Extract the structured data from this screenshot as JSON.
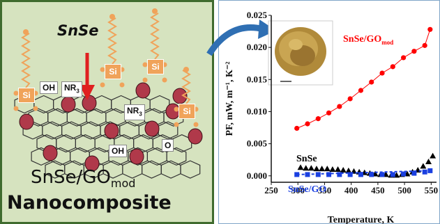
{
  "left_panel": {
    "arrow_label": "SnSe",
    "caption_main": "SnSe/GO",
    "caption_sub": "mod",
    "caption_line2": "Nanocomposite",
    "tags": {
      "oh1": "OH",
      "nr3a": "NR",
      "nr3a_sub": "3",
      "nr3b": "NR",
      "nr3b_sub": "3",
      "oh2": "OH",
      "o": "O"
    },
    "si_label": "Si",
    "colors": {
      "panel": "#d6e3bf",
      "border": "#3f6b2e",
      "particle": "#b0394a",
      "arrow": "#e02020",
      "linker": "#f0a35a"
    }
  },
  "chart_data": {
    "type": "scatter",
    "xlabel": "Temperature, K",
    "ylabel": "PF, mW, m⁻¹, K⁻²",
    "xlim": [
      250,
      560
    ],
    "ylim": [
      -0.001,
      0.025
    ],
    "x_ticks": [
      "250",
      "300",
      "350",
      "400",
      "450",
      "500",
      "550"
    ],
    "y_ticks": [
      "0.000",
      "0.005",
      "0.010",
      "0.015",
      "0.020",
      "0.025"
    ],
    "series": [
      {
        "name": "SnSe/GO",
        "name_sub": "mod",
        "color": "#ff0000",
        "marker": "circle",
        "x": [
          298,
          318,
          338,
          358,
          378,
          398,
          418,
          438,
          458,
          478,
          498,
          518,
          538,
          548
        ],
        "y": [
          0.0074,
          0.0081,
          0.0089,
          0.0098,
          0.0108,
          0.012,
          0.0133,
          0.0146,
          0.016,
          0.017,
          0.0184,
          0.0194,
          0.0203,
          0.0228
        ]
      },
      {
        "name": "SnSe",
        "color": "#000000",
        "marker": "triangle",
        "x": [
          305,
          315,
          325,
          335,
          345,
          355,
          365,
          375,
          385,
          395,
          405,
          415,
          425,
          435,
          445,
          455,
          465,
          475,
          485,
          495,
          505,
          515,
          525,
          535,
          545,
          553
        ],
        "y": [
          0.0013,
          0.0012,
          0.0012,
          0.0011,
          0.0011,
          0.0011,
          0.001,
          0.001,
          0.0009,
          0.0008,
          0.0007,
          0.0006,
          0.0005,
          0.0004,
          0.0003,
          0.0002,
          0.0002,
          0.0001,
          0.0001,
          0.0002,
          0.0003,
          0.0006,
          0.0009,
          0.0015,
          0.0022,
          0.0031
        ]
      },
      {
        "name": "SnSe/GO",
        "color": "#1a3fe0",
        "marker": "square",
        "x": [
          298,
          318,
          338,
          358,
          378,
          398,
          418,
          438,
          458,
          478,
          498,
          518,
          538,
          548
        ],
        "y": [
          0.0002,
          0.0002,
          0.0002,
          0.0002,
          0.0002,
          0.0002,
          0.0002,
          0.0002,
          0.0002,
          0.0002,
          0.0003,
          0.0004,
          0.0006,
          0.0008
        ]
      }
    ]
  }
}
